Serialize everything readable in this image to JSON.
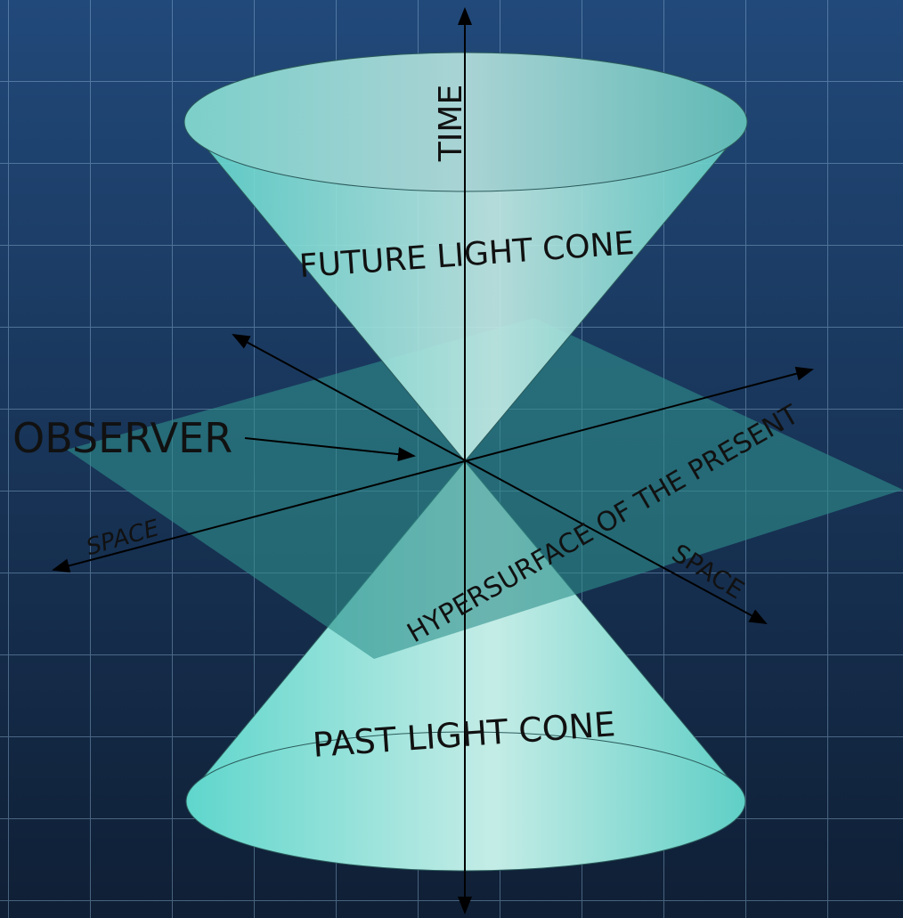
{
  "diagram": {
    "labels": {
      "time": "TIME",
      "future": "FUTURE LIGHT CONE",
      "observer": "OBSERVER",
      "space_left": "SPACE",
      "hypersurface": "HYPERSURFACE OF THE PRESENT",
      "space_right": "SPACE",
      "past": "PAST LIGHT CONE"
    }
  }
}
